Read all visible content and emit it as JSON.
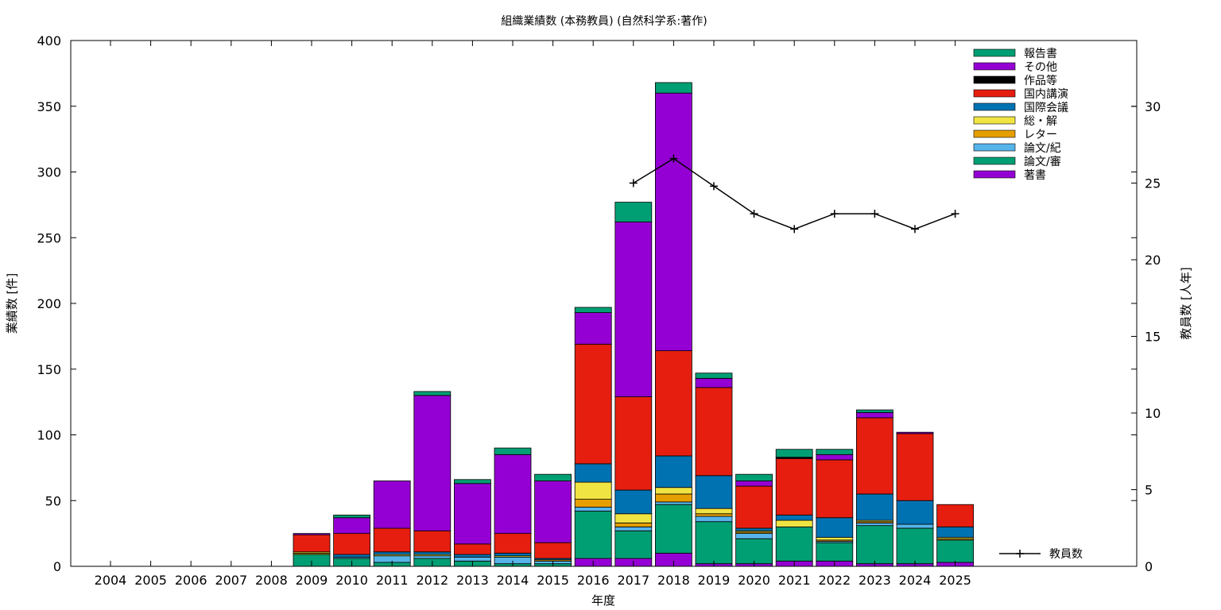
{
  "chart_data": {
    "type": "bar",
    "stacked": true,
    "title": "組織業績数 (本務教員) (自然科学系:著作)",
    "xlabel": "年度",
    "ylabel": "業績数 [件]",
    "y2label": "教員数 [人年]",
    "ylim": [
      0,
      400
    ],
    "y2lim": [
      0,
      34.3
    ],
    "yticks": [
      0,
      50,
      100,
      150,
      200,
      250,
      300,
      350,
      400
    ],
    "y2ticks": [
      0,
      5,
      10,
      15,
      20,
      25,
      30
    ],
    "categories": [
      "2004",
      "2005",
      "2006",
      "2007",
      "2008",
      "2009",
      "2010",
      "2011",
      "2012",
      "2013",
      "2014",
      "2015",
      "2016",
      "2017",
      "2018",
      "2019",
      "2020",
      "2021",
      "2022",
      "2023",
      "2024",
      "2025"
    ],
    "legend_position": "top-right",
    "series": [
      {
        "name": "著書",
        "color": "#9400d3",
        "values": [
          0,
          0,
          0,
          0,
          0,
          0,
          0,
          0,
          0,
          0,
          0,
          0,
          6,
          6,
          10,
          2,
          2,
          4,
          4,
          2,
          2,
          3
        ]
      },
      {
        "name": "論文/審",
        "color": "#009e73",
        "values": [
          0,
          0,
          0,
          0,
          0,
          9,
          6,
          3,
          6,
          4,
          2,
          2,
          36,
          21,
          37,
          32,
          19,
          26,
          14,
          29,
          27,
          17
        ]
      },
      {
        "name": "論文/紀",
        "color": "#56b4e9",
        "values": [
          0,
          0,
          0,
          0,
          0,
          0,
          1,
          5,
          2,
          3,
          5,
          2,
          3,
          3,
          2,
          4,
          4,
          0,
          1,
          2,
          3,
          0
        ]
      },
      {
        "name": "レター",
        "color": "#e69f00",
        "values": [
          0,
          0,
          0,
          0,
          0,
          1,
          0,
          0,
          0,
          0,
          0,
          1,
          6,
          3,
          6,
          2,
          1,
          0,
          1,
          1,
          0,
          1
        ]
      },
      {
        "name": "総・解",
        "color": "#f0e442",
        "values": [
          0,
          0,
          0,
          0,
          0,
          1,
          0,
          1,
          1,
          0,
          1,
          0,
          13,
          7,
          5,
          4,
          1,
          5,
          2,
          1,
          0,
          1
        ]
      },
      {
        "name": "国際会議",
        "color": "#0072b2",
        "values": [
          0,
          0,
          0,
          0,
          0,
          0,
          2,
          2,
          2,
          2,
          2,
          1,
          14,
          18,
          24,
          25,
          2,
          4,
          15,
          20,
          18,
          8
        ]
      },
      {
        "name": "国内講演",
        "color": "#e51e10",
        "values": [
          0,
          0,
          0,
          0,
          0,
          13,
          16,
          18,
          16,
          8,
          15,
          12,
          91,
          71,
          80,
          67,
          32,
          43,
          44,
          58,
          51,
          17
        ]
      },
      {
        "name": "作品等",
        "color": "#000000",
        "values": [
          0,
          0,
          0,
          0,
          0,
          0,
          0,
          0,
          0,
          0,
          0,
          0,
          0,
          0,
          0,
          0,
          0,
          1,
          0,
          0,
          0,
          0
        ]
      },
      {
        "name": "その他",
        "color": "#9400d3",
        "values": [
          0,
          0,
          0,
          0,
          0,
          1,
          12,
          36,
          103,
          46,
          60,
          47,
          24,
          133,
          196,
          7,
          4,
          0,
          4,
          4,
          1,
          0
        ]
      },
      {
        "name": "報告書",
        "color": "#009e73",
        "values": [
          0,
          0,
          0,
          0,
          0,
          0,
          2,
          0,
          3,
          3,
          5,
          5,
          4,
          15,
          8,
          4,
          5,
          6,
          4,
          2,
          0,
          0
        ]
      }
    ],
    "line_series": {
      "name": "教員数",
      "axis": "y2",
      "color": "#000000",
      "categories": [
        "2017",
        "2018",
        "2019",
        "2020",
        "2021",
        "2022",
        "2023",
        "2024",
        "2025"
      ],
      "values": [
        25,
        26.6,
        24.8,
        23,
        22,
        23,
        23,
        22,
        23
      ]
    }
  }
}
